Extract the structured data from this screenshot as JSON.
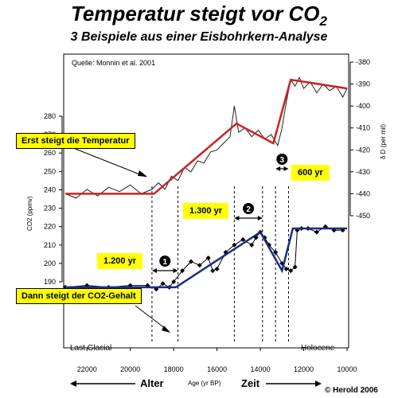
{
  "header": {
    "title": "Temperatur steigt vor CO",
    "title_sub": "2",
    "subtitle": "3 Beispiele aus einer Eisbohrkern-Analyse"
  },
  "source": "Quelle: Monnin et al. 2001",
  "callouts": {
    "temp_first": "Erst steigt die Temperatur",
    "co2_after": "Dann steigt der CO2-Gehalt"
  },
  "periods": {
    "glacial": "Last Glacial",
    "holocene": "Holocene"
  },
  "copyright": "© Herold 2006",
  "colors": {
    "temperature": "#cc2222",
    "co2": "#1a2a88",
    "highlight": "#ffff00"
  },
  "chart_data": {
    "type": "line",
    "x_axis": {
      "label": "Age (yr BP)",
      "range": [
        23000,
        10000
      ],
      "ticks": [
        22000,
        20000,
        18000,
        16000,
        14000,
        12000,
        10000
      ],
      "arrow_left": "Alter",
      "arrow_right": "Zeit"
    },
    "y_left": {
      "label": "CO2 (ppmv)",
      "range": [
        190,
        280
      ],
      "ticks": [
        190,
        200,
        210,
        220,
        230,
        240,
        250,
        260,
        270,
        280
      ]
    },
    "y_right": {
      "label": "δ D (per mil)",
      "range": [
        -450,
        -380
      ],
      "ticks": [
        -380,
        -390,
        -400,
        -410,
        -420,
        -430,
        -440,
        -450
      ]
    },
    "series": [
      {
        "name": "",
        "axis": "right",
        "x": [
          23000,
          22500,
          22000,
          21500,
          21000,
          20500,
          20000,
          19500,
          19000,
          18700,
          18400,
          18100,
          17800,
          17500,
          17200,
          16900,
          16600,
          16300,
          16000,
          15700,
          15400,
          15200,
          15000,
          14700,
          14400,
          14100,
          13800,
          13500,
          13200,
          13000,
          12800,
          12600,
          12400,
          12200,
          12000,
          11700,
          11400,
          11100,
          10800,
          10500,
          10200,
          10000
        ],
        "values": [
          -440,
          -442,
          -438,
          -441,
          -437,
          -439,
          -436,
          -440,
          -438,
          -435,
          -438,
          -432,
          -434,
          -428,
          -430,
          -425,
          -426,
          -421,
          -420,
          -417,
          -414,
          -400,
          -412,
          -410,
          -414,
          -411,
          -415,
          -413,
          -418,
          -410,
          -398,
          -388,
          -391,
          -387,
          -392,
          -389,
          -394,
          -390,
          -393,
          -391,
          -396,
          -392
        ]
      },
      {
        "name": "",
        "axis": "left",
        "x": [
          23000,
          22000,
          21000,
          20000,
          19200,
          18800,
          18500,
          18200,
          18000,
          17600,
          17200,
          16800,
          16400,
          16200,
          16000,
          15600,
          15200,
          14800,
          14400,
          14200,
          14000,
          13800,
          13600,
          13300,
          13000,
          12800,
          12600,
          12400,
          12300,
          12100,
          11800,
          11400,
          11000,
          10600,
          10200
        ],
        "values": [
          187,
          188,
          187,
          188,
          188,
          186,
          189,
          187,
          190,
          196,
          201,
          199,
          203,
          196,
          197,
          206,
          210,
          213,
          210,
          214,
          217,
          214,
          210,
          206,
          200,
          197,
          196,
          198,
          218,
          219,
          219,
          217,
          220,
          218,
          218
        ]
      }
    ],
    "trends": [
      {
        "axis": "right",
        "x": [
          23000,
          18900,
          15100,
          13400,
          12600,
          10000
        ],
        "values": [
          -440,
          -440,
          -408,
          -417,
          -388,
          -392
        ]
      },
      {
        "axis": "left",
        "x": [
          23000,
          17900,
          14000,
          13000,
          12500,
          10000
        ],
        "values": [
          187,
          187,
          217,
          196,
          219,
          219
        ]
      }
    ],
    "markers": [
      {
        "num": "1",
        "label": "1.200 yr",
        "from": 19000,
        "to": 17800
      },
      {
        "num": "2",
        "label": "1.300 yr",
        "from": 15200,
        "to": 13900
      },
      {
        "num": "3",
        "label": "600 yr",
        "from": 13300,
        "to": 12700
      }
    ]
  }
}
